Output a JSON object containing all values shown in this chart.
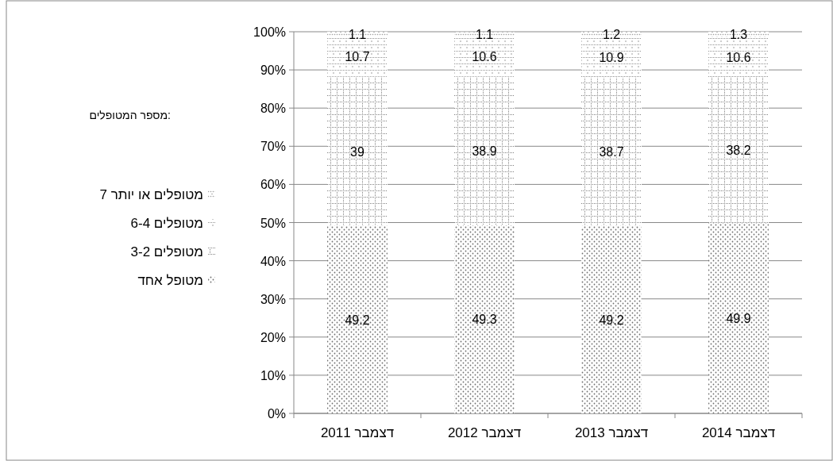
{
  "chart_data": {
    "type": "bar",
    "stacked": true,
    "legend_title": "מספר המטופלים:",
    "legend": "left",
    "grid": "y",
    "data_labels": true,
    "categories": [
      "2011 דצמבר",
      "2012 דצמבר",
      "2013 דצמבר",
      "2014 דצמבר"
    ],
    "series": [
      {
        "name": "מטופל אחד",
        "color": "#707070",
        "values": [
          49.2,
          49.3,
          49.2,
          49.9
        ]
      },
      {
        "name": "מטופלים 3-2",
        "color": "#808080",
        "values": [
          39,
          38.9,
          38.7,
          38.2
        ]
      },
      {
        "name": "מטופלים 6-4",
        "color": "#909090",
        "values": [
          10.7,
          10.6,
          10.9,
          10.6
        ]
      },
      {
        "name": "מטופלים או יותר 7",
        "color": "#a0a0a0",
        "values": [
          1.1,
          1.1,
          1.2,
          1.3
        ]
      }
    ],
    "ylim": [
      0,
      100
    ],
    "yticks": [
      {
        "value": 0,
        "label": "0%"
      },
      {
        "value": 10,
        "label": "10%"
      },
      {
        "value": 20,
        "label": "20%"
      },
      {
        "value": 30,
        "label": "30%"
      },
      {
        "value": 40,
        "label": "40%"
      },
      {
        "value": 50,
        "label": "50%"
      },
      {
        "value": 60,
        "label": "60%"
      },
      {
        "value": 70,
        "label": "70%"
      },
      {
        "value": 80,
        "label": "80%"
      },
      {
        "value": 90,
        "label": "90%"
      },
      {
        "value": 100,
        "label": "100%"
      }
    ]
  }
}
